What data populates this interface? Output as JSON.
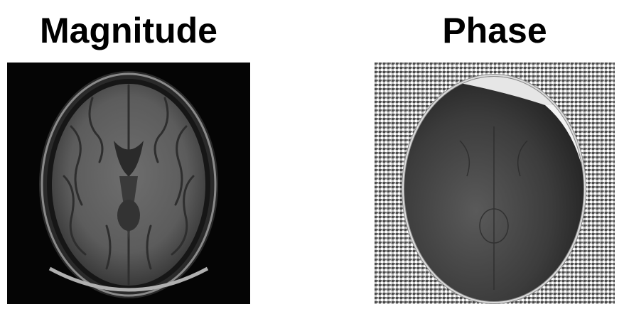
{
  "panels": {
    "magnitude": {
      "title": "Magnitude"
    },
    "phase": {
      "title": "Phase"
    }
  },
  "colors": {
    "background": "#ffffff",
    "title_text": "#000000",
    "magnitude_background": "#050505",
    "phase_noise": "#9a9a9a"
  },
  "icons": {
    "magnitude_image": "axial-brain-mri-magnitude-image",
    "phase_image": "axial-brain-mri-phase-image"
  }
}
